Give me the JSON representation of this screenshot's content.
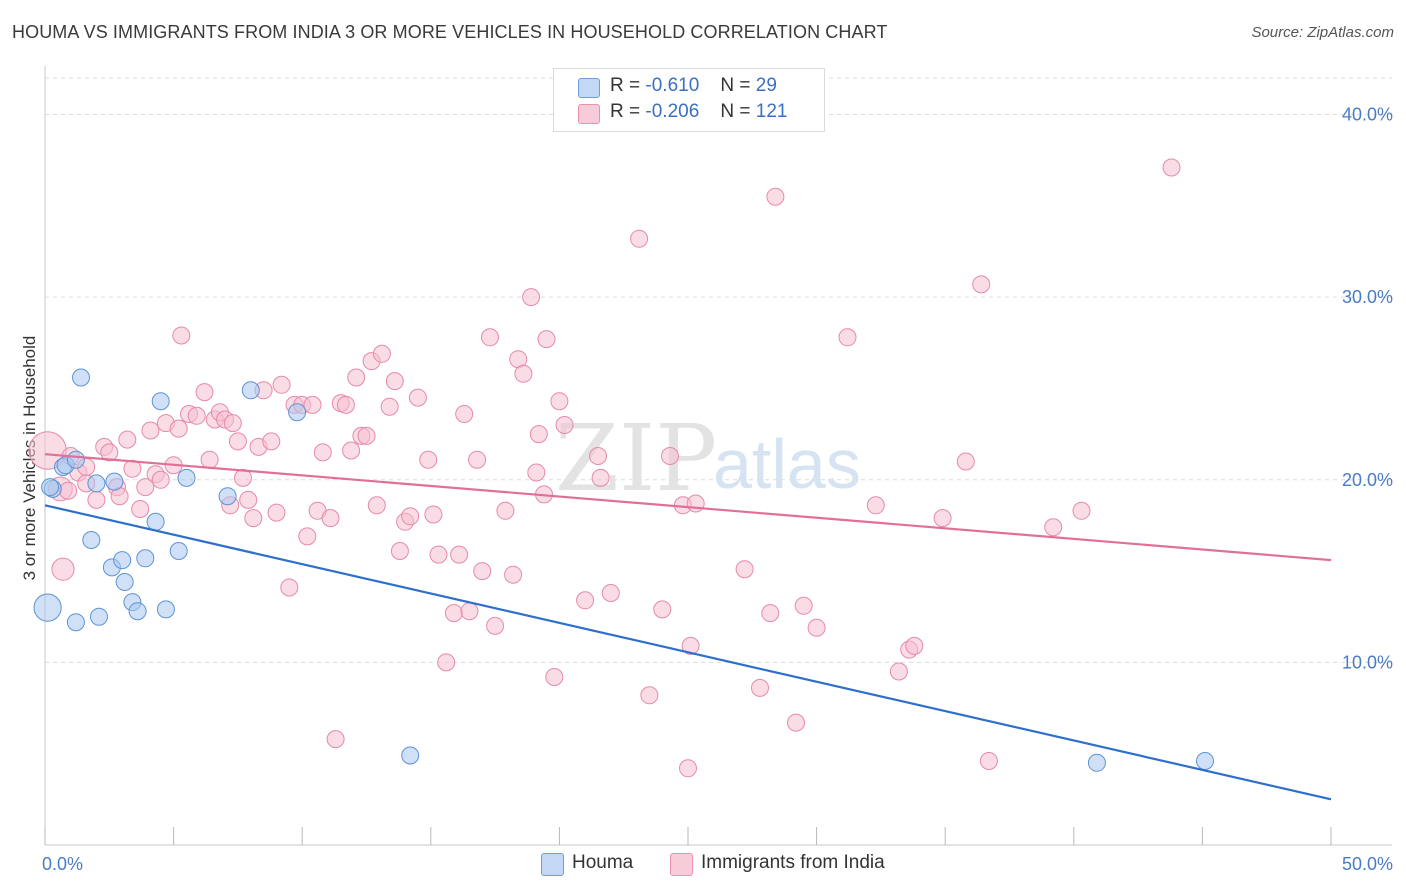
{
  "title": "HOUMA VS IMMIGRANTS FROM INDIA 3 OR MORE VEHICLES IN HOUSEHOLD CORRELATION CHART",
  "source": "Source: ZipAtlas.com",
  "watermark": {
    "zip": "ZIP",
    "atlas": "atlas"
  },
  "colors": {
    "houma_fill": "#a9c8f0",
    "houma_stroke": "#5d93d6",
    "houma_line": "#2f6fcc",
    "india_fill": "#f6bfd0",
    "india_stroke": "#e68aaa",
    "india_line": "#e07098",
    "tick": "#4a7cc4",
    "grid": "#dcdcdc"
  },
  "stats": [
    {
      "r_label": "R =",
      "r": "-0.610",
      "n_label": "N =",
      "n": "29"
    },
    {
      "r_label": "R =",
      "r": "-0.206",
      "n_label": "N =",
      "n": "121"
    }
  ],
  "legend": [
    {
      "label": "Houma"
    },
    {
      "label": "Immigrants from India"
    }
  ],
  "chart_data": {
    "type": "scatter",
    "title": "HOUMA VS IMMIGRANTS FROM INDIA 3 OR MORE VEHICLES IN HOUSEHOLD CORRELATION CHART",
    "xlabel": "",
    "ylabel": "3 or more Vehicles in Household",
    "xlim": [
      0,
      50
    ],
    "ylim": [
      0,
      42
    ],
    "x_tick_labels": [
      "0.0%",
      "50.0%"
    ],
    "y_ticks": [
      10,
      20,
      30,
      40
    ],
    "y_tick_labels": [
      "10.0%",
      "20.0%",
      "30.0%",
      "40.0%"
    ],
    "grid": "horizontal dashed",
    "legend_position": "bottom-center",
    "series": [
      {
        "name": "Houma",
        "r": -0.61,
        "n": 29,
        "trend": {
          "x": [
            0,
            50
          ],
          "y": [
            18.6,
            2.5
          ]
        },
        "points": [
          [
            0.1,
            13.0,
            1.6
          ],
          [
            0.3,
            19.5,
            1
          ],
          [
            0.7,
            20.7,
            1
          ],
          [
            0.8,
            20.8,
            1
          ],
          [
            1.2,
            21.1,
            1
          ],
          [
            1.4,
            25.6,
            1
          ],
          [
            1.8,
            16.7,
            1
          ],
          [
            2.0,
            19.8,
            1
          ],
          [
            2.1,
            12.5,
            1
          ],
          [
            1.2,
            12.2,
            1
          ],
          [
            2.6,
            15.2,
            1
          ],
          [
            2.7,
            19.9,
            1
          ],
          [
            3.0,
            15.6,
            1
          ],
          [
            3.1,
            14.4,
            1
          ],
          [
            3.4,
            13.3,
            1
          ],
          [
            3.6,
            12.8,
            1
          ],
          [
            3.9,
            15.7,
            1
          ],
          [
            4.3,
            17.7,
            1
          ],
          [
            4.5,
            24.3,
            1
          ],
          [
            4.7,
            12.9,
            1
          ],
          [
            5.2,
            16.1,
            1
          ],
          [
            5.5,
            20.1,
            1
          ],
          [
            7.1,
            19.1,
            1
          ],
          [
            8.0,
            24.9,
            1
          ],
          [
            9.8,
            23.7,
            1
          ],
          [
            14.2,
            4.9,
            1
          ],
          [
            40.9,
            4.5,
            1
          ],
          [
            45.1,
            4.6,
            1
          ],
          [
            0.2,
            19.6,
            1
          ]
        ]
      },
      {
        "name": "Immigrants from India",
        "r": -0.206,
        "n": 121,
        "trend": {
          "x": [
            0,
            50
          ],
          "y": [
            21.4,
            15.6
          ]
        },
        "points": [
          [
            0.1,
            21.6,
            2.2
          ],
          [
            0.6,
            19.5,
            1.4
          ],
          [
            0.7,
            15.1,
            1.3
          ],
          [
            1.0,
            21.3,
            1
          ],
          [
            1.3,
            20.4,
            1
          ],
          [
            1.6,
            20.7,
            1
          ],
          [
            2.0,
            18.9,
            1
          ],
          [
            2.3,
            21.8,
            1
          ],
          [
            2.5,
            21.5,
            1
          ],
          [
            2.8,
            19.6,
            1
          ],
          [
            2.9,
            19.1,
            1
          ],
          [
            3.2,
            22.2,
            1
          ],
          [
            3.4,
            20.6,
            1
          ],
          [
            3.7,
            18.4,
            1
          ],
          [
            3.9,
            19.6,
            1
          ],
          [
            4.1,
            22.7,
            1
          ],
          [
            4.3,
            20.3,
            1
          ],
          [
            4.5,
            20.0,
            1
          ],
          [
            4.7,
            23.1,
            1
          ],
          [
            5.0,
            20.8,
            1
          ],
          [
            5.2,
            22.8,
            1
          ],
          [
            5.3,
            27.9,
            1
          ],
          [
            5.6,
            23.6,
            1
          ],
          [
            5.9,
            23.5,
            1
          ],
          [
            6.2,
            24.8,
            1
          ],
          [
            6.4,
            21.1,
            1
          ],
          [
            6.6,
            23.3,
            1
          ],
          [
            6.8,
            23.7,
            1
          ],
          [
            7.0,
            23.3,
            1
          ],
          [
            7.2,
            18.6,
            1
          ],
          [
            7.3,
            23.1,
            1
          ],
          [
            7.5,
            22.1,
            1
          ],
          [
            7.7,
            20.1,
            1
          ],
          [
            7.9,
            18.9,
            1
          ],
          [
            8.1,
            17.9,
            1
          ],
          [
            8.3,
            21.8,
            1
          ],
          [
            8.5,
            24.9,
            1
          ],
          [
            8.8,
            22.1,
            1
          ],
          [
            9.0,
            18.2,
            1
          ],
          [
            9.2,
            25.2,
            1
          ],
          [
            9.5,
            14.1,
            1
          ],
          [
            9.7,
            24.1,
            1
          ],
          [
            10.0,
            24.1,
            1
          ],
          [
            10.2,
            16.9,
            1
          ],
          [
            10.4,
            24.1,
            1
          ],
          [
            10.6,
            18.3,
            1
          ],
          [
            10.8,
            21.5,
            1
          ],
          [
            11.1,
            17.9,
            1
          ],
          [
            11.3,
            5.8,
            1
          ],
          [
            11.5,
            24.2,
            1
          ],
          [
            11.7,
            24.1,
            1
          ],
          [
            11.9,
            21.6,
            1
          ],
          [
            12.1,
            25.6,
            1
          ],
          [
            12.3,
            22.4,
            1
          ],
          [
            12.5,
            22.4,
            1
          ],
          [
            12.7,
            26.5,
            1
          ],
          [
            12.9,
            18.6,
            1
          ],
          [
            13.1,
            26.9,
            1
          ],
          [
            13.4,
            24.0,
            1
          ],
          [
            13.6,
            25.4,
            1
          ],
          [
            13.8,
            16.1,
            1
          ],
          [
            14.0,
            17.7,
            1
          ],
          [
            14.2,
            18.0,
            1
          ],
          [
            14.5,
            24.5,
            1
          ],
          [
            14.9,
            21.1,
            1
          ],
          [
            15.1,
            18.1,
            1
          ],
          [
            15.3,
            15.9,
            1
          ],
          [
            15.6,
            10.0,
            1
          ],
          [
            15.9,
            12.7,
            1
          ],
          [
            16.1,
            15.9,
            1
          ],
          [
            16.3,
            23.6,
            1
          ],
          [
            16.5,
            12.8,
            1
          ],
          [
            16.8,
            21.1,
            1
          ],
          [
            17.0,
            15.0,
            1
          ],
          [
            17.3,
            27.8,
            1
          ],
          [
            17.5,
            12.0,
            1
          ],
          [
            17.9,
            18.3,
            1
          ],
          [
            18.2,
            14.8,
            1
          ],
          [
            18.4,
            26.6,
            1
          ],
          [
            18.6,
            25.8,
            1
          ],
          [
            18.9,
            30.0,
            1
          ],
          [
            19.1,
            20.4,
            1
          ],
          [
            19.4,
            19.2,
            1
          ],
          [
            19.5,
            27.7,
            1
          ],
          [
            19.8,
            9.2,
            1
          ],
          [
            19.2,
            22.5,
            1
          ],
          [
            20.0,
            24.3,
            1
          ],
          [
            20.2,
            23.0,
            1
          ],
          [
            21.0,
            13.4,
            1
          ],
          [
            21.5,
            21.3,
            1
          ],
          [
            21.6,
            20.1,
            1
          ],
          [
            22.0,
            13.8,
            1
          ],
          [
            23.1,
            33.2,
            1
          ],
          [
            23.5,
            8.2,
            1
          ],
          [
            24.0,
            12.9,
            1
          ],
          [
            24.3,
            21.3,
            1
          ],
          [
            24.8,
            18.6,
            1
          ],
          [
            25.0,
            4.2,
            1
          ],
          [
            25.1,
            10.9,
            1
          ],
          [
            25.3,
            18.7,
            1
          ],
          [
            27.2,
            15.1,
            1
          ],
          [
            27.8,
            8.6,
            1
          ],
          [
            28.2,
            12.7,
            1
          ],
          [
            28.4,
            35.5,
            1
          ],
          [
            29.2,
            6.7,
            1
          ],
          [
            29.5,
            13.1,
            1
          ],
          [
            30.0,
            11.9,
            1
          ],
          [
            31.2,
            27.8,
            1
          ],
          [
            32.3,
            18.6,
            1
          ],
          [
            33.2,
            9.5,
            1
          ],
          [
            33.6,
            10.7,
            1
          ],
          [
            33.8,
            10.9,
            1
          ],
          [
            34.9,
            17.9,
            1
          ],
          [
            35.8,
            21.0,
            1
          ],
          [
            36.4,
            30.7,
            1
          ],
          [
            36.7,
            4.6,
            1
          ],
          [
            39.2,
            17.4,
            1
          ],
          [
            40.3,
            18.3,
            1
          ],
          [
            43.8,
            37.1,
            1
          ],
          [
            0.9,
            19.4,
            1
          ],
          [
            1.6,
            19.8,
            1
          ]
        ]
      }
    ]
  }
}
